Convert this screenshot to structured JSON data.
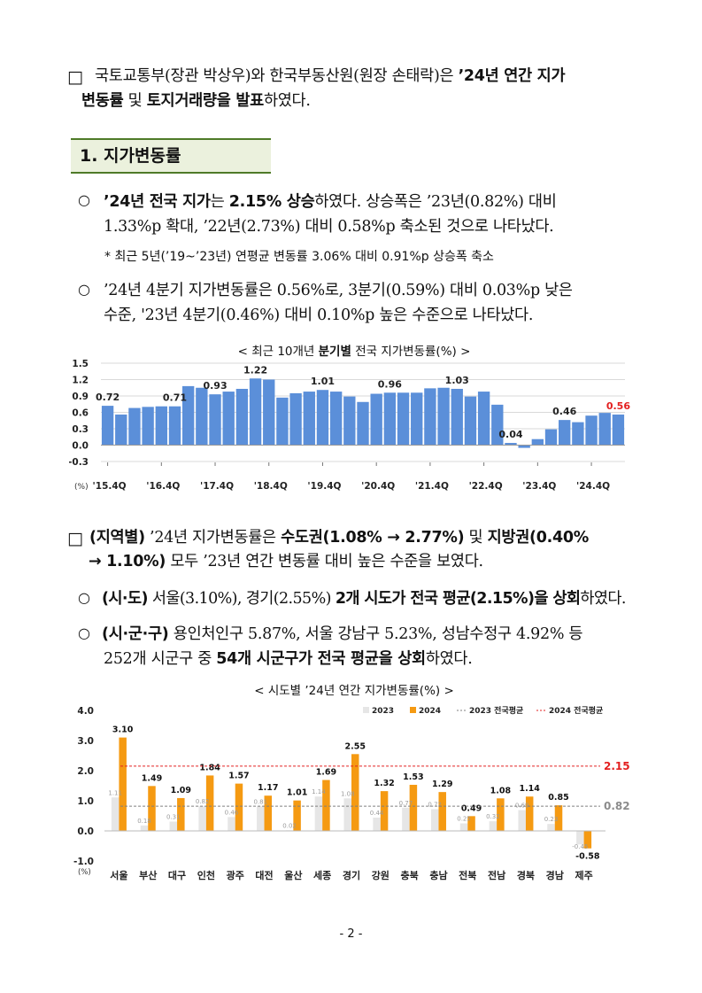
{
  "para1": {
    "mark": "□",
    "l1a": "국토교통부(장관 박상우)와 한국부동산원(원장 손태락)은 ",
    "l1b": "’24년 연간 지가",
    "l2a": "변동률",
    "l2b": " 및 ",
    "l2c": "토지거래량을 발표",
    "l2d": "하였다."
  },
  "section1": {
    "title": "1. 지가변동률"
  },
  "bullet1": {
    "mark": "○",
    "l1a": "’24년 전국 지가",
    "l1b": "는 ",
    "l1c": "2.15% 상승",
    "l1d": "하였다. 상승폭은 ’23년(0.82%) 대비",
    "l2": "1.33%p 확대, ’22년(2.73%) 대비 0.58%p 축소된 것으로 나타났다.",
    "note": "* 최근 5년(’19~’23년) 연평균 변동률 3.06% 대비 0.91%p 상승폭 축소"
  },
  "bullet2": {
    "mark": "○",
    "l1": "’24년 4분기 지가변동률은 0.56%로, 3분기(0.59%) 대비 0.03%p 낮은",
    "l2": "수준, '23년 4분기(0.46%) 대비 0.10%p 높은 수준으로 나타났다."
  },
  "chart1_title": {
    "a": "< 최근 10개년 ",
    "b": "분기별",
    "c": " 전국 지가변동률(%) >"
  },
  "para2": {
    "mark": "□",
    "l1a": "(지역별)",
    "l1b": " ’24년 지가변동률은 ",
    "l1c": "수도권(1.08% → 2.77%)",
    "l1d": " 및 ",
    "l1e": "지방권(0.40%",
    "l2a": "→ 1.10%)",
    "l2b": " 모두 ’23년 연간 변동률 대비 높은 수준을 보였다."
  },
  "bullet3": {
    "mark": "○",
    "a": "(시·도)",
    "b": " 서울(3.10%), 경기(2.55%) ",
    "c": "2개 시도가 전국 평균(2.15%)을 상회",
    "d": "하였다."
  },
  "bullet4": {
    "mark": "○",
    "l1a": "(시·군·구)",
    "l1b": " 용인처인구 5.87%, 서울 강남구 5.23%, 성남수정구 4.92% 등",
    "l2a": "252개 시군구 중 ",
    "l2b": "54개 시군구가 전국 평균을 상회",
    "l2c": "하였다."
  },
  "chart2_title": "< 시도별 ’24년 연간 지가변동률(%) >",
  "page_number": "- 2 -",
  "chart_data": [
    {
      "type": "bar",
      "title": "< 최근 10개년 분기별 전국 지가변동률(%) >",
      "unit_label": "(%)",
      "ylim": [
        -0.3,
        1.5
      ],
      "yticks": [
        "1.5",
        "1.2",
        "0.9",
        "0.6",
        "0.3",
        "0.0",
        "-0.3"
      ],
      "x_tick_labels": [
        "'15.4Q",
        "'16.4Q",
        "'17.4Q",
        "'18.4Q",
        "'19.4Q",
        "'20.4Q",
        "'21.4Q",
        "'22.4Q",
        "'23.4Q",
        "'24.4Q"
      ],
      "values": [
        0.72,
        0.56,
        0.68,
        0.7,
        0.71,
        0.71,
        1.08,
        1.05,
        0.93,
        0.98,
        1.03,
        1.22,
        1.2,
        0.87,
        0.95,
        0.98,
        1.01,
        0.98,
        0.89,
        0.79,
        0.94,
        0.96,
        0.96,
        0.96,
        1.04,
        1.05,
        1.03,
        0.89,
        0.98,
        0.74,
        0.04,
        -0.05,
        0.11,
        0.29,
        0.46,
        0.42,
        0.54,
        0.59,
        0.56
      ],
      "labeled_points": [
        {
          "index": 0,
          "label": "0.72"
        },
        {
          "index": 5,
          "label": "0.71"
        },
        {
          "index": 8,
          "label": "0.93"
        },
        {
          "index": 11,
          "label": "1.22"
        },
        {
          "index": 16,
          "label": "1.01"
        },
        {
          "index": 21,
          "label": "0.96"
        },
        {
          "index": 26,
          "label": "1.03"
        },
        {
          "index": 30,
          "label": "0.04"
        },
        {
          "index": 34,
          "label": "0.46"
        },
        {
          "index": 38,
          "label": "0.56",
          "highlight": true
        }
      ],
      "colors": {
        "bar": "#5b8fd9",
        "highlight_label": "#e32020"
      },
      "grid": true
    },
    {
      "type": "bar",
      "title": "< 시도별 ’24년 연간 지가변동률(%) >",
      "unit_label": "(%)",
      "ylim": [
        -1.0,
        4.0
      ],
      "yticks": [
        "4.0",
        "3.0",
        "2.0",
        "1.0",
        "0.0",
        "-1.0"
      ],
      "categories": [
        "서울",
        "부산",
        "대구",
        "인천",
        "광주",
        "대전",
        "울산",
        "세종",
        "경기",
        "강원",
        "충북",
        "충남",
        "전북",
        "전남",
        "경북",
        "경남",
        "제주"
      ],
      "series": [
        {
          "name": "2023",
          "values": [
            1.11,
            0.18,
            0.31,
            0.82,
            0.46,
            0.81,
            0.02,
            1.14,
            1.08,
            0.44,
            0.77,
            0.72,
            0.25,
            0.32,
            0.69,
            0.23,
            -0.45
          ],
          "labels": [
            "1.11",
            "0.18",
            "0.31",
            "0.82",
            "0.46",
            "0.81",
            "0.02",
            "1.14",
            "1.08",
            "0.44",
            "0.77",
            "0.72",
            "0.25",
            "0.32",
            "0.69",
            "0.23",
            "-0.45"
          ]
        },
        {
          "name": "2024",
          "values": [
            3.1,
            1.49,
            1.09,
            1.84,
            1.57,
            1.17,
            1.01,
            1.69,
            2.55,
            1.32,
            1.53,
            1.29,
            0.49,
            1.08,
            1.14,
            0.85,
            -0.58
          ],
          "labels": [
            "3.10",
            "1.49",
            "1.09",
            "1.84",
            "1.57",
            "1.17",
            "1.01",
            "1.69",
            "2.55",
            "1.32",
            "1.53",
            "1.29",
            "0.49",
            "1.08",
            "1.14",
            "0.85",
            "-0.58"
          ]
        }
      ],
      "reference_lines": [
        {
          "name": "2023 전국평균",
          "value": 0.82,
          "label": "0.82",
          "color": "#7f7f7f"
        },
        {
          "name": "2024 전국평균",
          "value": 2.15,
          "label": "2.15",
          "color": "#e32020"
        }
      ],
      "legend": {
        "items": [
          "2023",
          "2024",
          "2023 전국평균",
          "2024 전국평균"
        ],
        "placement": "top-right"
      },
      "colors": {
        "s2023": "#e6e6e6",
        "s2024": "#f59a12"
      }
    }
  ]
}
